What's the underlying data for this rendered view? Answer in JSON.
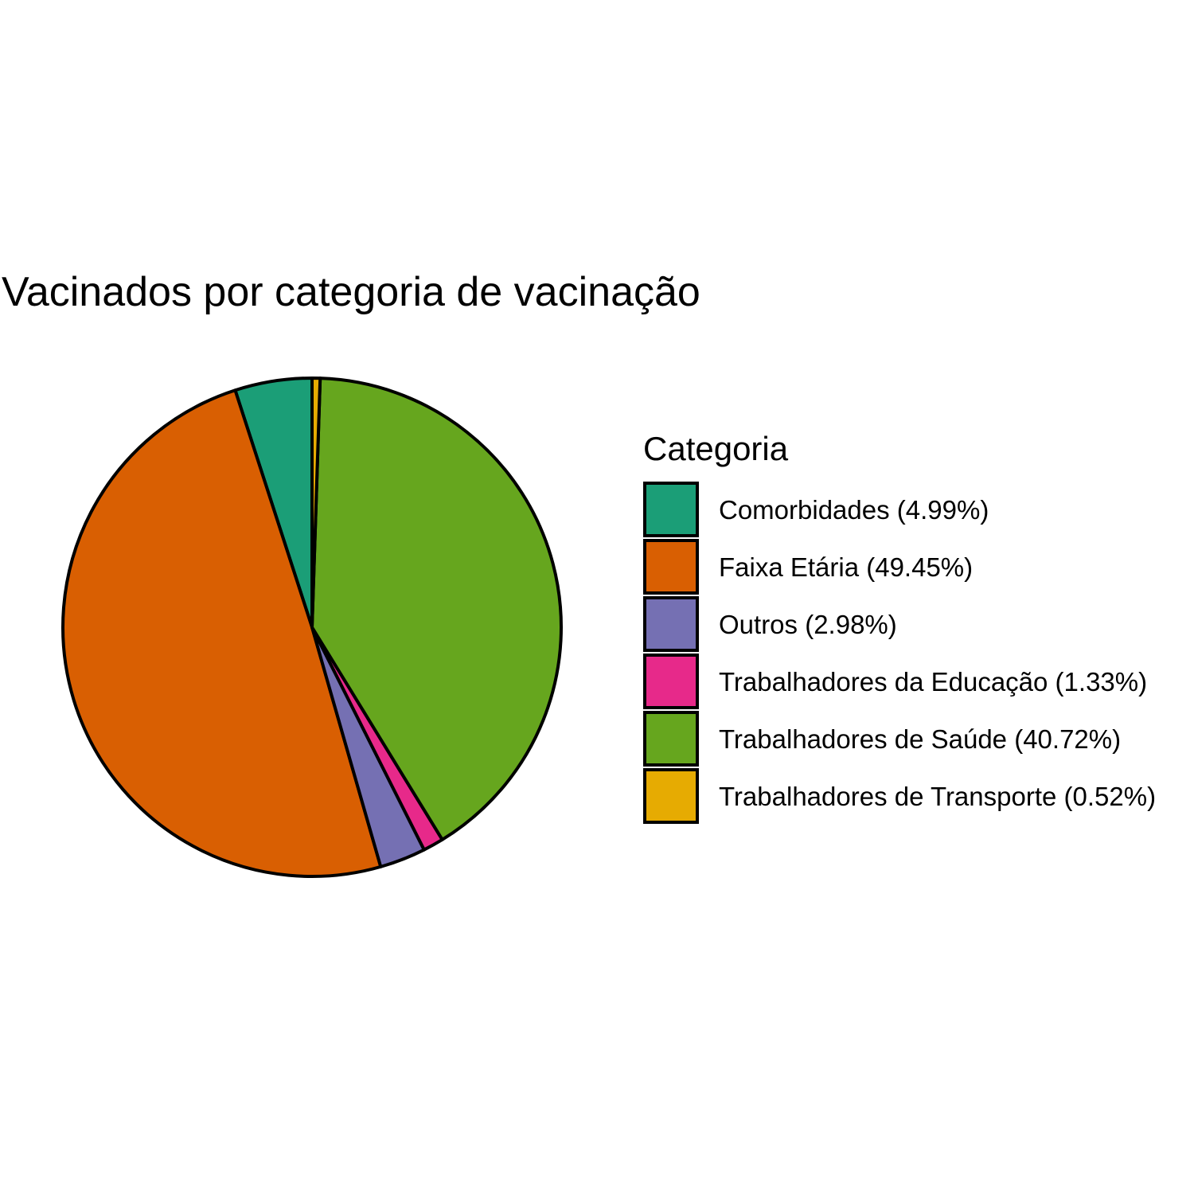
{
  "chart_data": {
    "type": "pie",
    "title": "Vacinados por categoria de vacinação",
    "legend": {
      "title": "Categoria",
      "position": "right"
    },
    "start_angle_deg": 0,
    "direction": "counterclockwise",
    "slices": [
      {
        "name": "Comorbidades",
        "label": "Comorbidades (4.99%)",
        "value": 4.99,
        "color": "#1B9E77"
      },
      {
        "name": "Faixa Etária",
        "label": "Faixa Etária (49.45%)",
        "value": 49.45,
        "color": "#D95F02"
      },
      {
        "name": "Outros",
        "label": "Outros (2.98%)",
        "value": 2.98,
        "color": "#7570B3"
      },
      {
        "name": "Trabalhadores da Educação",
        "label": "Trabalhadores da Educação (1.33%)",
        "value": 1.33,
        "color": "#E7298A"
      },
      {
        "name": "Trabalhadores de Saúde",
        "label": "Trabalhadores de Saúde (40.72%)",
        "value": 40.72,
        "color": "#66A61E"
      },
      {
        "name": "Trabalhadores de Transporte",
        "label": "Trabalhadores de Transporte (0.52%)",
        "value": 0.52,
        "color": "#E6AB02"
      }
    ]
  }
}
